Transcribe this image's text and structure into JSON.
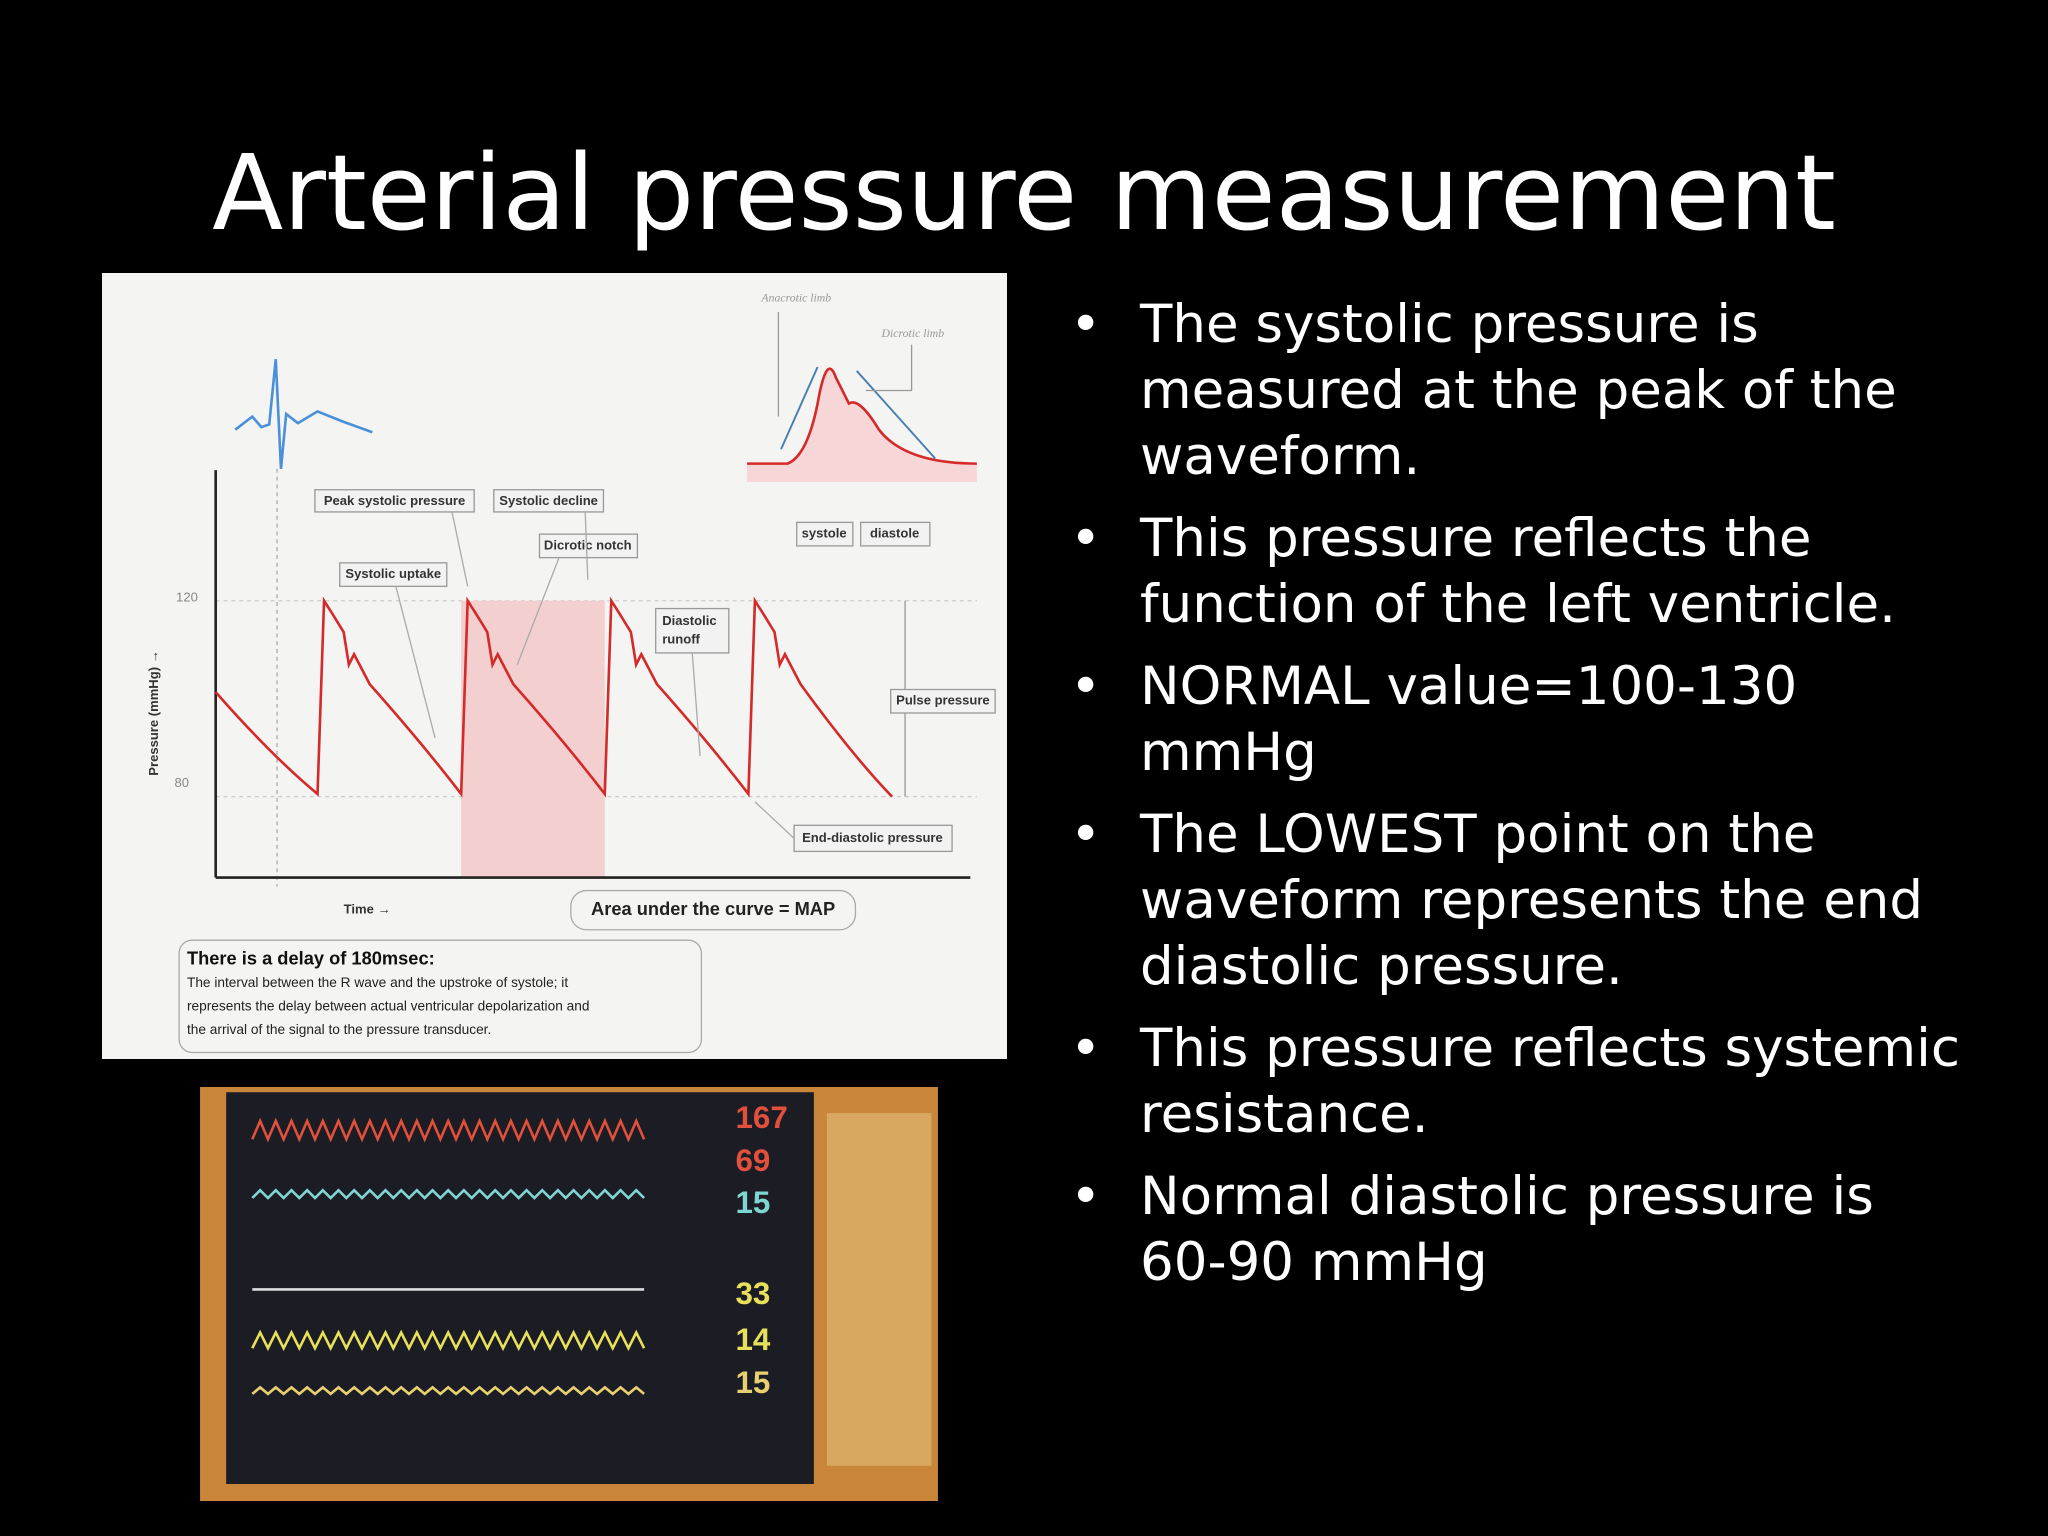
{
  "title": "Arterial pressure measurement",
  "diagram": {
    "anacrotic": "Anacrotic limb",
    "dicrotic_limb": "Dicrotic limb",
    "peak": "Peak systolic pressure",
    "decline": "Systolic decline",
    "notch": "Dicrotic notch",
    "uptake": "Systolic uptake",
    "runoff": [
      "Diastolic",
      "runoff"
    ],
    "systole": "systole",
    "diastole": "diastole",
    "pulse": "Pulse pressure",
    "end_diastolic": "End-diastolic pressure",
    "y_axis": "Pressure (mmHg) →",
    "tick_high": "120",
    "tick_low": "80",
    "x_axis": "Time →",
    "map": "Area under the curve = MAP",
    "delay_title": "There is a delay of 180msec:",
    "delay_text": [
      "The interval between the R wave and the upstroke of systole; it",
      "represents the delay between actual ventricular depolarization and",
      "the arrival of the signal to the pressure transducer."
    ]
  },
  "monitor": {
    "readings": [
      "167",
      "69",
      "15",
      "33",
      "14",
      "15"
    ]
  },
  "bullets": [
    "The systolic pressure is measured at the peak of the waveform.",
    "This pressure reflects the function of the left ventricle.",
    "NORMAL value=100-130 mmHg",
    "The LOWEST point on the waveform represents the end diastolic pressure.",
    "This pressure reflects systemic resistance.",
    "Normal diastolic pressure is 60-90 mmHg"
  ]
}
